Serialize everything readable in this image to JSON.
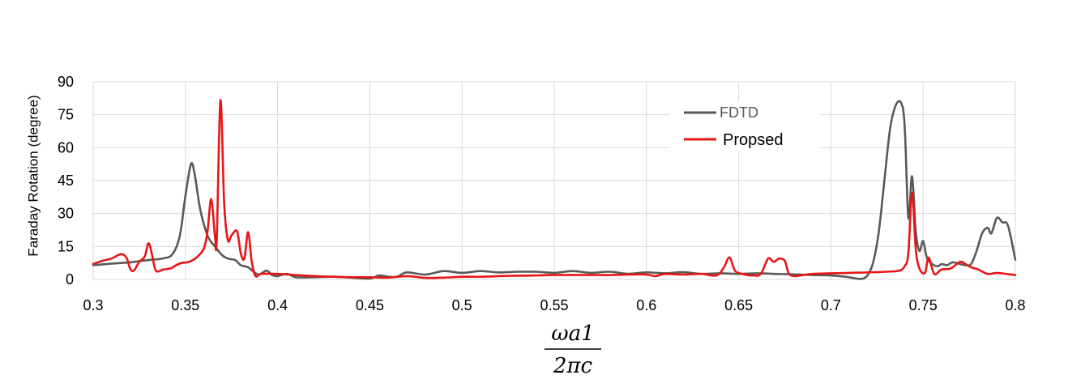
{
  "chart_data": {
    "type": "line",
    "title": "",
    "xlabel_numerator": "ωa1",
    "xlabel_denominator": "2πc",
    "ylabel": "Faraday Rotation (degree)",
    "xlim": [
      0.3,
      0.8
    ],
    "ylim": [
      0,
      90
    ],
    "x_ticks": [
      "0.3",
      "0.35",
      "0.4",
      "0.45",
      "0.5",
      "0.55",
      "0.6",
      "0.65",
      "0.7",
      "0.75",
      "0.8"
    ],
    "y_ticks": [
      "0",
      "15",
      "30",
      "45",
      "60",
      "75",
      "90"
    ],
    "grid": true,
    "legend_position": "top-right",
    "series": [
      {
        "name": "FDTD",
        "color": "#595959",
        "points": [
          [
            0.3,
            6.5
          ],
          [
            0.31,
            7.2
          ],
          [
            0.32,
            7.8
          ],
          [
            0.33,
            8.8
          ],
          [
            0.338,
            9.6
          ],
          [
            0.343,
            11.5
          ],
          [
            0.347,
            20
          ],
          [
            0.35,
            38
          ],
          [
            0.353,
            52.5
          ],
          [
            0.355,
            48
          ],
          [
            0.358,
            32
          ],
          [
            0.362,
            20
          ],
          [
            0.366,
            15
          ],
          [
            0.37,
            11
          ],
          [
            0.373,
            9.5
          ],
          [
            0.377,
            8.8
          ],
          [
            0.38,
            6.5
          ],
          [
            0.384,
            5.5
          ],
          [
            0.387,
            3.5
          ],
          [
            0.39,
            2.2
          ],
          [
            0.394,
            4.0
          ],
          [
            0.397,
            2.0
          ],
          [
            0.4,
            1.5
          ],
          [
            0.405,
            2.5
          ],
          [
            0.41,
            1.0
          ],
          [
            0.42,
            1.0
          ],
          [
            0.43,
            1.2
          ],
          [
            0.44,
            0.8
          ],
          [
            0.45,
            0.4
          ],
          [
            0.455,
            1.8
          ],
          [
            0.46,
            1.2
          ],
          [
            0.465,
            1.3
          ],
          [
            0.47,
            3.2
          ],
          [
            0.48,
            2.2
          ],
          [
            0.49,
            3.8
          ],
          [
            0.5,
            3.0
          ],
          [
            0.51,
            3.8
          ],
          [
            0.52,
            3.2
          ],
          [
            0.53,
            3.5
          ],
          [
            0.54,
            3.5
          ],
          [
            0.55,
            3.0
          ],
          [
            0.56,
            3.8
          ],
          [
            0.57,
            3.0
          ],
          [
            0.58,
            3.5
          ],
          [
            0.59,
            2.6
          ],
          [
            0.6,
            3.2
          ],
          [
            0.61,
            2.8
          ],
          [
            0.62,
            3.3
          ],
          [
            0.63,
            2.5
          ],
          [
            0.64,
            2.8
          ],
          [
            0.65,
            2.5
          ],
          [
            0.66,
            2.8
          ],
          [
            0.67,
            2.5
          ],
          [
            0.68,
            2.3
          ],
          [
            0.69,
            2.0
          ],
          [
            0.7,
            1.8
          ],
          [
            0.708,
            1.2
          ],
          [
            0.713,
            0.5
          ],
          [
            0.717,
            0.3
          ],
          [
            0.72,
            2.0
          ],
          [
            0.723,
            8.0
          ],
          [
            0.726,
            22
          ],
          [
            0.729,
            45
          ],
          [
            0.732,
            68
          ],
          [
            0.735,
            79
          ],
          [
            0.738,
            80.5
          ],
          [
            0.74,
            70
          ],
          [
            0.742,
            28
          ],
          [
            0.744,
            47
          ],
          [
            0.746,
            22
          ],
          [
            0.748,
            13
          ],
          [
            0.75,
            17.5
          ],
          [
            0.752,
            10
          ],
          [
            0.755,
            7.0
          ],
          [
            0.758,
            6.0
          ],
          [
            0.76,
            7.0
          ],
          [
            0.763,
            6.5
          ],
          [
            0.766,
            7.8
          ],
          [
            0.77,
            7.0
          ],
          [
            0.773,
            6.5
          ],
          [
            0.776,
            7.0
          ],
          [
            0.779,
            13
          ],
          [
            0.782,
            21
          ],
          [
            0.785,
            23.5
          ],
          [
            0.787,
            21
          ],
          [
            0.79,
            28
          ],
          [
            0.793,
            26
          ],
          [
            0.796,
            24.5
          ],
          [
            0.8,
            9.0
          ]
        ]
      },
      {
        "name": "Propsed",
        "color": "#e81515",
        "points": [
          [
            0.3,
            7.0
          ],
          [
            0.305,
            8.5
          ],
          [
            0.31,
            9.5
          ],
          [
            0.315,
            11.5
          ],
          [
            0.318,
            10.0
          ],
          [
            0.32,
            5.0
          ],
          [
            0.322,
            4.0
          ],
          [
            0.325,
            8.0
          ],
          [
            0.328,
            10.5
          ],
          [
            0.33,
            16.5
          ],
          [
            0.332,
            11.0
          ],
          [
            0.334,
            4.0
          ],
          [
            0.338,
            4.5
          ],
          [
            0.342,
            5.0
          ],
          [
            0.345,
            6.5
          ],
          [
            0.348,
            7.5
          ],
          [
            0.352,
            8.0
          ],
          [
            0.356,
            10.0
          ],
          [
            0.36,
            14.0
          ],
          [
            0.362,
            22.0
          ],
          [
            0.364,
            36.5
          ],
          [
            0.366,
            20.0
          ],
          [
            0.367,
            18.0
          ],
          [
            0.369,
            81.5
          ],
          [
            0.371,
            35.0
          ],
          [
            0.373,
            18.0
          ],
          [
            0.375,
            20.0
          ],
          [
            0.378,
            22.0
          ],
          [
            0.38,
            12.0
          ],
          [
            0.382,
            9.5
          ],
          [
            0.384,
            21.5
          ],
          [
            0.386,
            8.0
          ],
          [
            0.388,
            1.5
          ],
          [
            0.391,
            2.5
          ],
          [
            0.4,
            2.5
          ],
          [
            0.41,
            2.0
          ],
          [
            0.42,
            1.5
          ],
          [
            0.43,
            1.2
          ],
          [
            0.44,
            1.0
          ],
          [
            0.45,
            1.0
          ],
          [
            0.46,
            0.8
          ],
          [
            0.47,
            1.5
          ],
          [
            0.48,
            0.7
          ],
          [
            0.49,
            0.8
          ],
          [
            0.5,
            1.2
          ],
          [
            0.51,
            1.2
          ],
          [
            0.52,
            1.5
          ],
          [
            0.53,
            1.7
          ],
          [
            0.54,
            1.8
          ],
          [
            0.55,
            2.0
          ],
          [
            0.56,
            2.0
          ],
          [
            0.57,
            2.0
          ],
          [
            0.58,
            2.0
          ],
          [
            0.59,
            2.2
          ],
          [
            0.6,
            2.2
          ],
          [
            0.605,
            1.5
          ],
          [
            0.61,
            2.5
          ],
          [
            0.62,
            2.2
          ],
          [
            0.63,
            2.5
          ],
          [
            0.638,
            1.8
          ],
          [
            0.642,
            5.5
          ],
          [
            0.645,
            10.0
          ],
          [
            0.648,
            4.0
          ],
          [
            0.652,
            2.5
          ],
          [
            0.658,
            1.8
          ],
          [
            0.662,
            2.5
          ],
          [
            0.666,
            9.5
          ],
          [
            0.669,
            8.0
          ],
          [
            0.672,
            9.5
          ],
          [
            0.675,
            8.5
          ],
          [
            0.677,
            3.0
          ],
          [
            0.68,
            1.5
          ],
          [
            0.685,
            2.0
          ],
          [
            0.69,
            2.5
          ],
          [
            0.7,
            2.8
          ],
          [
            0.71,
            3.0
          ],
          [
            0.72,
            3.2
          ],
          [
            0.73,
            3.5
          ],
          [
            0.737,
            4.0
          ],
          [
            0.74,
            6.0
          ],
          [
            0.742,
            12.0
          ],
          [
            0.744,
            39.5
          ],
          [
            0.746,
            14.0
          ],
          [
            0.748,
            5.0
          ],
          [
            0.751,
            3.0
          ],
          [
            0.753,
            10.0
          ],
          [
            0.756,
            2.5
          ],
          [
            0.76,
            4.5
          ],
          [
            0.765,
            5.0
          ],
          [
            0.77,
            8.0
          ],
          [
            0.773,
            7.0
          ],
          [
            0.776,
            5.5
          ],
          [
            0.78,
            4.5
          ],
          [
            0.785,
            2.5
          ],
          [
            0.79,
            3.0
          ],
          [
            0.795,
            2.5
          ],
          [
            0.8,
            2.0
          ]
        ]
      }
    ]
  }
}
